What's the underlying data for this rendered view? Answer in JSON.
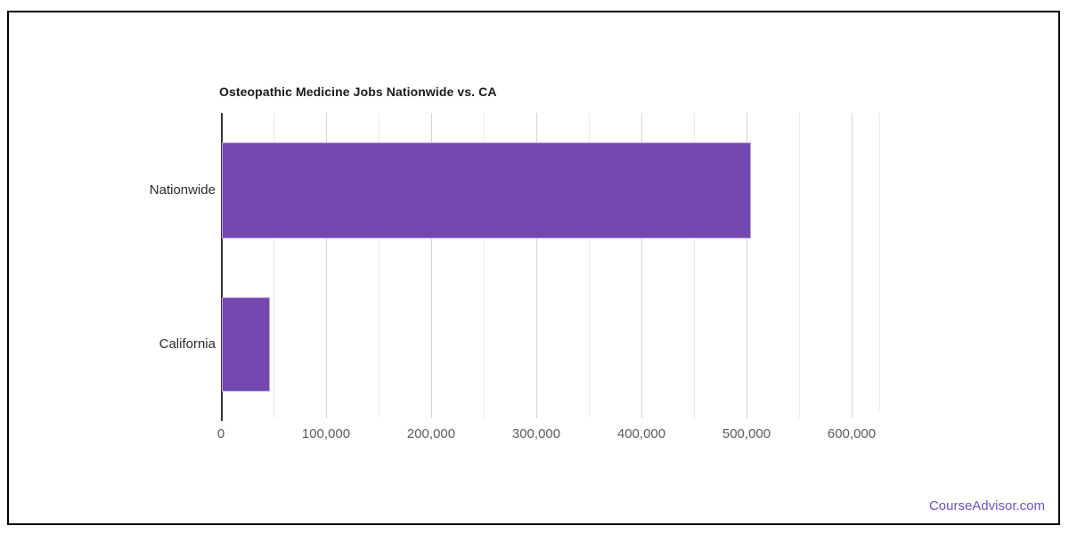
{
  "chart_data": {
    "type": "bar",
    "orientation": "horizontal",
    "title": "Osteopathic Medicine Jobs Nationwide vs. CA",
    "categories": [
      "Nationwide",
      "California"
    ],
    "values": [
      503000,
      46000
    ],
    "xlabel": "",
    "ylabel": "",
    "xlim": [
      0,
      626000
    ],
    "x_ticks": [
      0,
      100000,
      200000,
      300000,
      400000,
      500000,
      600000
    ],
    "x_tick_labels": [
      "0",
      "100,000",
      "200,000",
      "300,000",
      "400,000",
      "500,000",
      "600,000"
    ],
    "minor_grid_step": 50000,
    "grid": "vertical gridlines on, minor every 50,000",
    "legend": "none",
    "bar_color": "#7347ad"
  },
  "colors": {
    "bar": "#7347ad",
    "bar_edge": "#bfa8e0",
    "major_grid": "#d4d4d4",
    "minor_grid": "#ececec",
    "plot_right_edge": "#ececec",
    "axis": "#333333",
    "link": "#7151bd"
  },
  "footer": {
    "link_text": "CourseAdvisor.com"
  }
}
